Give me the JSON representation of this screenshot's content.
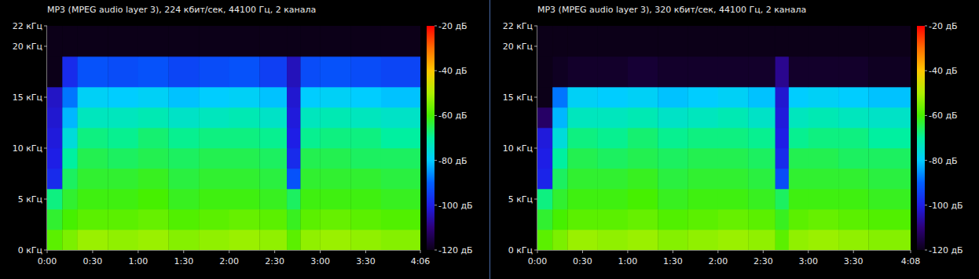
{
  "chart_data": [
    {
      "type": "heatmap",
      "title": "MP3 (MPEG audio layer 3), 224 кбит/сек, 44100 Гц, 2 канала",
      "x_edges": [
        0,
        10,
        20,
        40,
        60,
        80,
        100,
        120,
        140,
        158,
        167,
        180,
        200,
        220,
        246
      ],
      "y_edges": [
        0,
        2,
        4,
        6,
        8,
        10,
        12,
        14,
        16,
        19,
        22
      ],
      "values": [
        [
          -58,
          -55,
          -52,
          -53,
          -52,
          -54,
          -53,
          -52,
          -53,
          -58,
          -53,
          -52,
          -53,
          -54
        ],
        [
          -63,
          -60,
          -58,
          -58,
          -57,
          -59,
          -58,
          -57,
          -58,
          -62,
          -58,
          -57,
          -58,
          -59
        ],
        [
          -68,
          -63,
          -61,
          -61,
          -60,
          -62,
          -61,
          -61,
          -62,
          -66,
          -61,
          -61,
          -61,
          -62
        ],
        [
          -98,
          -66,
          -63,
          -63,
          -62,
          -64,
          -63,
          -63,
          -64,
          -92,
          -63,
          -63,
          -63,
          -64
        ],
        [
          -100,
          -70,
          -65,
          -66,
          -65,
          -66,
          -65,
          -65,
          -66,
          -98,
          -65,
          -65,
          -66,
          -66
        ],
        [
          -101,
          -76,
          -68,
          -69,
          -67,
          -69,
          -68,
          -68,
          -69,
          -100,
          -69,
          -68,
          -68,
          -70
        ],
        [
          -102,
          -82,
          -73,
          -73,
          -72,
          -74,
          -73,
          -72,
          -74,
          -101,
          -73,
          -72,
          -73,
          -74
        ],
        [
          -103,
          -88,
          -79,
          -80,
          -79,
          -81,
          -80,
          -79,
          -81,
          -102,
          -80,
          -79,
          -80,
          -81
        ],
        [
          -120,
          -98,
          -92,
          -93,
          -92,
          -94,
          -93,
          -92,
          -95,
          -104,
          -93,
          -92,
          -93,
          -94
        ],
        [
          -120,
          -120,
          -120,
          -120,
          -120,
          -120,
          -120,
          -120,
          -120,
          -120,
          -120,
          -120,
          -120,
          -120
        ]
      ],
      "xlim": [
        0,
        246
      ],
      "ylim": [
        0,
        22
      ],
      "xticks": [
        {
          "value": 0,
          "label": "0:00"
        },
        {
          "value": 30,
          "label": "0:30"
        },
        {
          "value": 60,
          "label": "1:00"
        },
        {
          "value": 90,
          "label": "1:30"
        },
        {
          "value": 120,
          "label": "2:00"
        },
        {
          "value": 150,
          "label": "2:30"
        },
        {
          "value": 180,
          "label": "3:00"
        },
        {
          "value": 210,
          "label": "3:30"
        },
        {
          "value": 246,
          "label": "4:06"
        }
      ],
      "yticks": [
        {
          "value": 0,
          "label": "0 кГц"
        },
        {
          "value": 5,
          "label": "5 кГц"
        },
        {
          "value": 10,
          "label": "10 кГц"
        },
        {
          "value": 15,
          "label": "15 кГц"
        },
        {
          "value": 20,
          "label": "20 кГц"
        },
        {
          "value": 22,
          "label": "22 кГц"
        }
      ],
      "color_range": [
        -120,
        -20
      ],
      "color_ticks": [
        {
          "value": -20,
          "label": "-20 дБ"
        },
        {
          "value": -40,
          "label": "-40 дБ"
        },
        {
          "value": -60,
          "label": "-60 дБ"
        },
        {
          "value": -80,
          "label": "-80 дБ"
        },
        {
          "value": -100,
          "label": "-100 дБ"
        },
        {
          "value": -120,
          "label": "-120 дБ"
        }
      ]
    },
    {
      "type": "heatmap",
      "title": "MP3 (MPEG audio layer 3), 320 кбит/сек, 44100 Гц, 2 канала",
      "x_edges": [
        0,
        10,
        20,
        40,
        60,
        80,
        100,
        120,
        140,
        158,
        167,
        180,
        200,
        220,
        248
      ],
      "y_edges": [
        0,
        2,
        4,
        6,
        8,
        10,
        12,
        14,
        16,
        19,
        22
      ],
      "values": [
        [
          -58,
          -55,
          -52,
          -53,
          -52,
          -54,
          -53,
          -52,
          -53,
          -58,
          -53,
          -52,
          -53,
          -54
        ],
        [
          -63,
          -60,
          -58,
          -58,
          -57,
          -59,
          -58,
          -57,
          -58,
          -62,
          -58,
          -57,
          -58,
          -59
        ],
        [
          -68,
          -63,
          -61,
          -61,
          -60,
          -62,
          -61,
          -61,
          -62,
          -66,
          -61,
          -61,
          -61,
          -62
        ],
        [
          -99,
          -66,
          -63,
          -63,
          -62,
          -64,
          -63,
          -63,
          -64,
          -93,
          -63,
          -63,
          -63,
          -64
        ],
        [
          -100,
          -70,
          -65,
          -66,
          -65,
          -66,
          -65,
          -65,
          -66,
          -98,
          -65,
          -65,
          -66,
          -66
        ],
        [
          -101,
          -76,
          -68,
          -69,
          -67,
          -69,
          -68,
          -68,
          -69,
          -100,
          -69,
          -68,
          -68,
          -70
        ],
        [
          -112,
          -82,
          -73,
          -73,
          -72,
          -74,
          -73,
          -72,
          -74,
          -101,
          -73,
          -72,
          -73,
          -74
        ],
        [
          -120,
          -88,
          -79,
          -80,
          -79,
          -81,
          -80,
          -79,
          -81,
          -102,
          -80,
          -79,
          -80,
          -81
        ],
        [
          -120,
          -119,
          -118,
          -118,
          -117,
          -118,
          -118,
          -118,
          -118,
          -108,
          -118,
          -118,
          -118,
          -119
        ],
        [
          -120,
          -120,
          -120,
          -120,
          -120,
          -120,
          -120,
          -120,
          -120,
          -120,
          -120,
          -120,
          -120,
          -120
        ]
      ],
      "xlim": [
        0,
        248
      ],
      "ylim": [
        0,
        22
      ],
      "xticks": [
        {
          "value": 0,
          "label": "0:00"
        },
        {
          "value": 30,
          "label": "0:30"
        },
        {
          "value": 60,
          "label": "1:00"
        },
        {
          "value": 90,
          "label": "1:30"
        },
        {
          "value": 120,
          "label": "2:00"
        },
        {
          "value": 150,
          "label": "2:30"
        },
        {
          "value": 180,
          "label": "3:00"
        },
        {
          "value": 210,
          "label": "3:30"
        },
        {
          "value": 248,
          "label": "4:08"
        }
      ],
      "yticks": [
        {
          "value": 0,
          "label": "0 кГц"
        },
        {
          "value": 5,
          "label": "5 кГц"
        },
        {
          "value": 10,
          "label": "10 кГц"
        },
        {
          "value": 15,
          "label": "15 кГц"
        },
        {
          "value": 20,
          "label": "20 кГц"
        },
        {
          "value": 22,
          "label": "22 кГц"
        }
      ],
      "color_range": [
        -120,
        -20
      ],
      "color_ticks": [
        {
          "value": -20,
          "label": "-20 дБ"
        },
        {
          "value": -40,
          "label": "-40 дБ"
        },
        {
          "value": -60,
          "label": "-60 дБ"
        },
        {
          "value": -80,
          "label": "-80 дБ"
        },
        {
          "value": -100,
          "label": "-100 дБ"
        },
        {
          "value": -120,
          "label": "-120 дБ"
        }
      ]
    }
  ]
}
